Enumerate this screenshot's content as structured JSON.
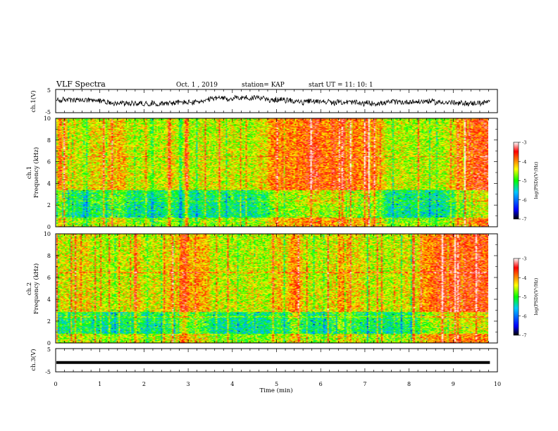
{
  "header": {
    "title": "VLF Spectra",
    "date": "Oct. 1 , 2019",
    "station": "station= KAP",
    "start": "start  UT =   11: 10: 1"
  },
  "chart_data": [
    {
      "type": "line",
      "panel": "ch1-waveform",
      "ylabel": "ch.1(V)",
      "ylim": [
        -5,
        5
      ],
      "yticks": [
        -5,
        5
      ],
      "xlim": [
        0,
        10
      ],
      "description_values": {
        "min_approx": -2.5,
        "max_approx": 3.0,
        "mean_approx": 0.2
      }
    },
    {
      "type": "heatmap",
      "panel": "ch1-spectrogram",
      "ylabel_top": "ch.1",
      "ylabel": "Frequency (kHz)",
      "ylim": [
        0,
        10
      ],
      "yticks": [
        0,
        2,
        4,
        6,
        8,
        10
      ],
      "xlim": [
        0,
        10
      ],
      "colorbar": {
        "label": "log(PSD)(V²/Hz)",
        "range": [
          -7,
          -3
        ],
        "ticks": [
          "-3",
          "-4",
          "-5",
          "-6",
          "-7"
        ]
      }
    },
    {
      "type": "heatmap",
      "panel": "ch2-spectrogram",
      "ylabel_top": "ch.2",
      "ylabel": "Frequency (kHz)",
      "ylim": [
        0,
        10
      ],
      "yticks": [
        0,
        2,
        4,
        6,
        8,
        10
      ],
      "xlim": [
        0,
        10
      ],
      "colorbar": {
        "label": "log(PSD)(V²/Hz)",
        "range": [
          -7,
          -3
        ],
        "ticks": [
          "-3",
          "-4",
          "-5",
          "-6",
          "-7"
        ]
      }
    },
    {
      "type": "line",
      "panel": "ch3-waveform",
      "ylabel": "ch.3(V)",
      "ylim": [
        -5,
        5
      ],
      "yticks": [
        -5,
        5
      ],
      "xlim": [
        0,
        10
      ],
      "constant_value": -1
    }
  ],
  "xaxis": {
    "label": "Time (min)",
    "ticks": [
      "0",
      "1",
      "2",
      "3",
      "4",
      "5",
      "6",
      "7",
      "8",
      "9",
      "10"
    ],
    "data_end": 9.83
  },
  "colors": {
    "ink": "#000000",
    "colormap": [
      "#000000",
      "#0000ff",
      "#00c8ff",
      "#00ff00",
      "#ffff00",
      "#ff0000",
      "#ffffff"
    ]
  }
}
